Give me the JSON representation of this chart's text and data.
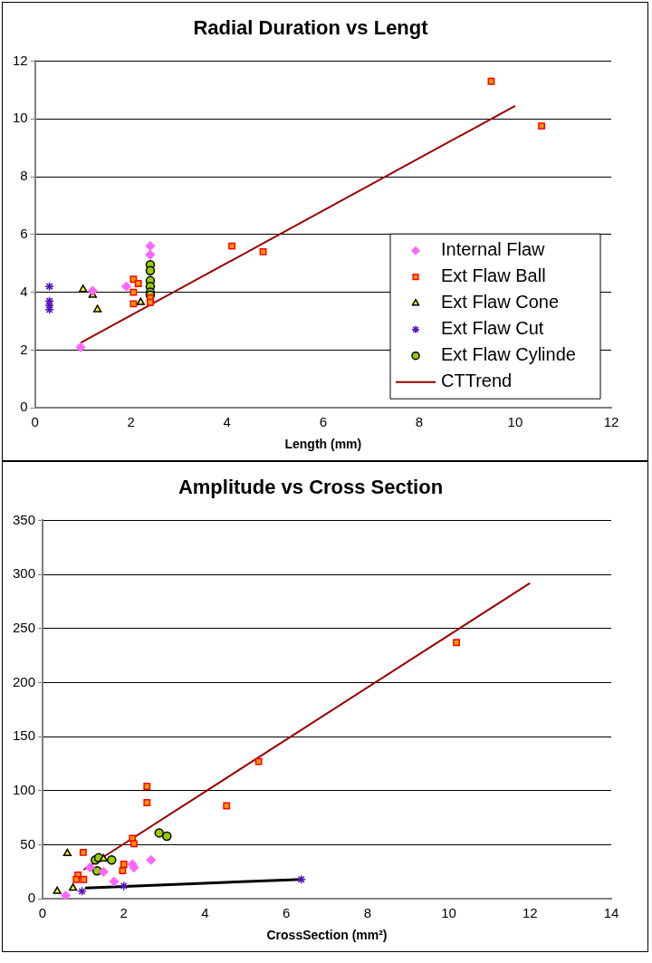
{
  "chart_data": [
    {
      "type": "scatter",
      "title": "Radial Duration vs Lengt",
      "xlabel": "Length (mm)",
      "xlim": [
        0,
        12
      ],
      "xticks": [
        0,
        2,
        4,
        6,
        8,
        10,
        12
      ],
      "ylim": [
        0,
        12
      ],
      "yticks": [
        0,
        2,
        4,
        6,
        8,
        10,
        12
      ],
      "grid": "y",
      "legend": "bottom right",
      "series": [
        {
          "name": "Internal Flaw",
          "type": "scatter",
          "marker": "diamond",
          "color": "#ff66ff",
          "x": [
            0.95,
            1.2,
            1.9,
            2.4,
            2.4
          ],
          "values": [
            2.1,
            4.05,
            4.2,
            5.6,
            5.3
          ]
        },
        {
          "name": "Ext Flaw Ball",
          "type": "scatter",
          "marker": "square",
          "color": "#ff9900",
          "x": [
            2.05,
            2.05,
            2.05,
            2.15,
            2.4,
            2.4,
            4.1,
            4.75,
            9.5,
            10.55
          ],
          "values": [
            4.45,
            4.0,
            3.6,
            4.3,
            3.8,
            3.65,
            5.6,
            5.4,
            11.3,
            9.75
          ]
        },
        {
          "name": "Ext Flaw Cone",
          "type": "scatter",
          "marker": "triangle",
          "color": "#ffff00",
          "x": [
            1.0,
            1.2,
            1.3,
            2.2
          ],
          "values": [
            4.1,
            3.9,
            3.4,
            3.65
          ]
        },
        {
          "name": "Ext Flaw Cut",
          "type": "scatter",
          "marker": "cross",
          "color": "#5511bb",
          "x": [
            0.3,
            0.3,
            0.3,
            0.3
          ],
          "values": [
            4.2,
            3.7,
            3.55,
            3.4
          ]
        },
        {
          "name": "Ext Flaw Cylinde",
          "type": "scatter",
          "marker": "circle",
          "color": "#99cc00",
          "x": [
            2.4,
            2.4,
            2.4,
            2.4,
            2.4,
            2.4
          ],
          "values": [
            4.95,
            4.75,
            4.4,
            4.2,
            4.0,
            3.9
          ]
        },
        {
          "name": "CTTrend",
          "type": "line",
          "marker": "none",
          "color": "#990000",
          "x": [
            0.95,
            10
          ],
          "values": [
            2.25,
            10.45
          ]
        }
      ]
    },
    {
      "type": "scatter",
      "title": "Amplitude vs Cross Section",
      "xlabel": "CrossSection (mm²)",
      "xlim": [
        0,
        14
      ],
      "xticks": [
        0,
        2,
        4,
        6,
        8,
        10,
        12,
        14
      ],
      "ylim": [
        0,
        350
      ],
      "yticks": [
        0,
        50,
        100,
        150,
        200,
        250,
        300,
        350
      ],
      "grid": "y",
      "series": [
        {
          "type": "scatter",
          "marker": "diamond",
          "color": "#ff66ff",
          "x": [
            0.57,
            1.17,
            1.5,
            1.76,
            2.21,
            2.25,
            2.67
          ],
          "values": [
            3,
            29,
            25,
            16,
            32,
            29,
            36
          ]
        },
        {
          "type": "scatter",
          "marker": "square",
          "color": "#ff9900",
          "x": [
            2.57,
            2.57,
            2.21,
            2.25,
            1.0,
            2.0,
            1.97,
            0.87,
            0.83,
            1.01,
            4.53,
            5.32,
            10.19
          ],
          "values": [
            104,
            89,
            56,
            51,
            43,
            32,
            26,
            22,
            18,
            18,
            86,
            127,
            237
          ]
        },
        {
          "type": "scatter",
          "marker": "triangle",
          "color": "#ffff00",
          "x": [
            0.61,
            1.5,
            0.36,
            0.75
          ],
          "values": [
            42,
            37,
            7,
            10
          ]
        },
        {
          "type": "scatter",
          "marker": "cross",
          "color": "#5511bb",
          "x": [
            0.97,
            2.0,
            6.37
          ],
          "values": [
            7,
            12,
            18
          ]
        },
        {
          "type": "scatter",
          "marker": "circle",
          "color": "#99cc00",
          "x": [
            1.3,
            1.38,
            1.7,
            1.34,
            2.87,
            3.06
          ],
          "values": [
            36,
            38,
            36,
            26,
            61,
            58
          ]
        },
        {
          "type": "line",
          "marker": "none",
          "color": "#990000",
          "x": [
            1.01,
            12
          ],
          "values": [
            27,
            292
          ]
        },
        {
          "type": "line",
          "marker": "none",
          "color": "#000000",
          "x": [
            1.05,
            6.37
          ],
          "values": [
            10,
            18
          ]
        }
      ]
    }
  ]
}
